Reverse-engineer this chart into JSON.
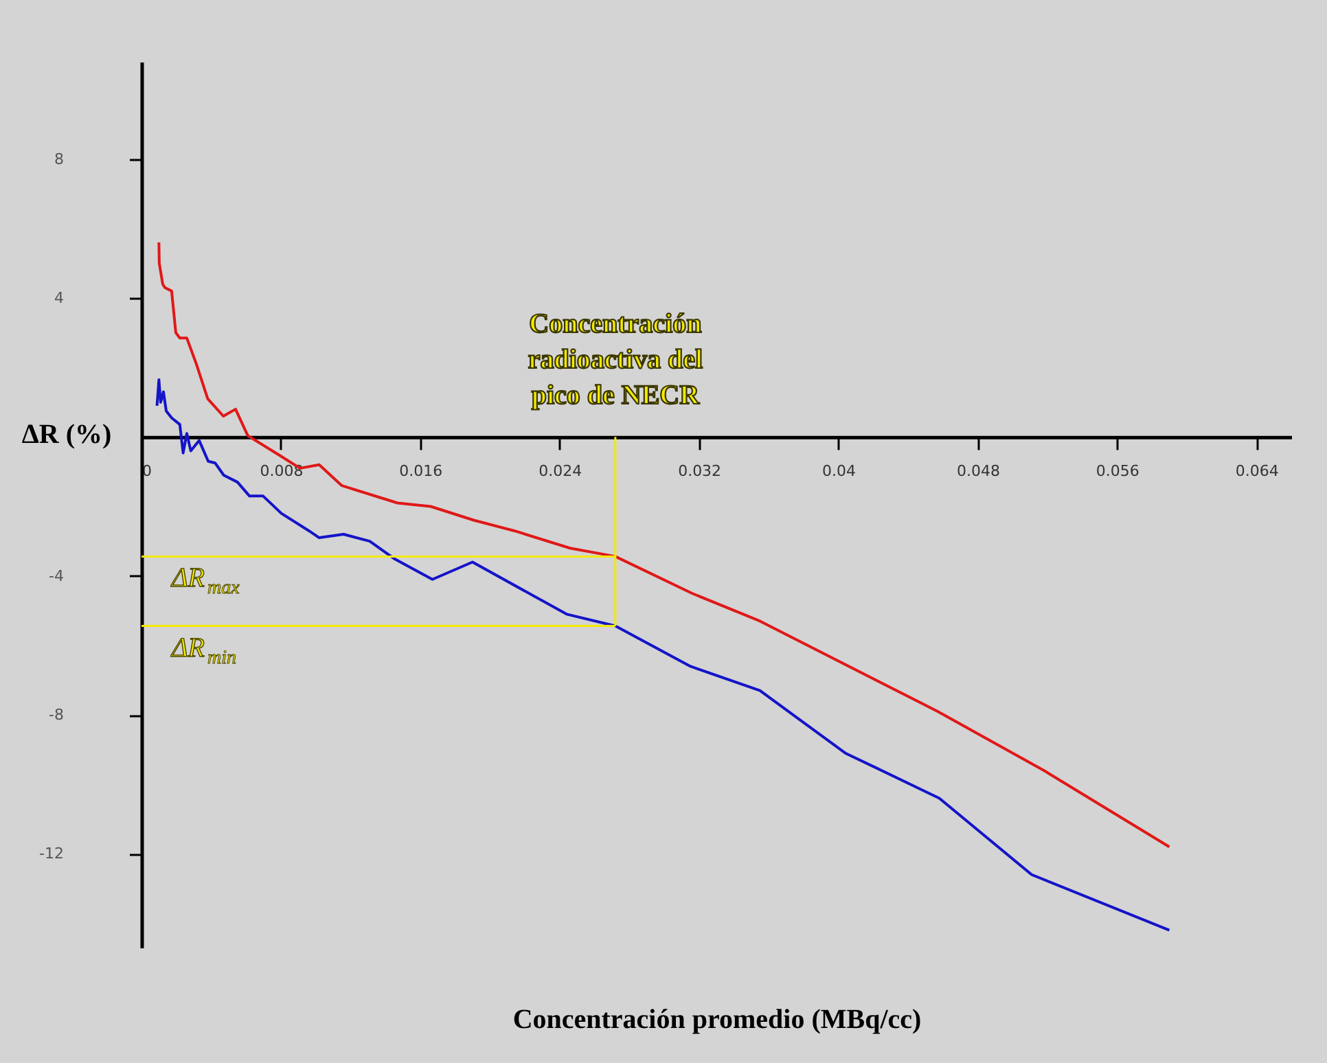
{
  "chart_data": {
    "type": "line",
    "xlabel": "Concentración promedio (MBq/cc)",
    "ylabel": "ΔR (%)",
    "xlim": [
      0,
      0.066
    ],
    "ylim": [
      -14.7,
      10.8
    ],
    "xticks": [
      0,
      0.008,
      0.016,
      0.024,
      0.032,
      0.04,
      0.048,
      0.056,
      0.064
    ],
    "yticks": [
      8,
      4,
      -4,
      -8,
      -12
    ],
    "grid": false,
    "legend": false,
    "series": [
      {
        "color": "#e01818",
        "x": [
          0.001,
          0.00102,
          0.00122,
          0.00134,
          0.00173,
          0.00197,
          0.0022,
          0.0026,
          0.00315,
          0.0038,
          0.0047,
          0.0054,
          0.0061,
          0.008,
          0.0091,
          0.0102,
          0.0115,
          0.0147,
          0.0166,
          0.0191,
          0.0214,
          0.0246,
          0.0272,
          0.0316,
          0.0355,
          0.0457,
          0.0518,
          0.059
        ],
        "values": [
          5.6,
          5.0,
          4.4,
          4.3,
          4.2,
          3.0,
          2.85,
          2.85,
          2.1,
          1.1,
          0.6,
          0.8,
          0.04,
          -0.55,
          -0.9,
          -0.8,
          -1.4,
          -1.9,
          -2.0,
          -2.4,
          -2.7,
          -3.2,
          -3.44,
          -4.5,
          -5.3,
          -7.9,
          -9.6,
          -11.8
        ]
      },
      {
        "color": "#1414c8",
        "x": [
          0.00089,
          0.001,
          0.0011,
          0.00126,
          0.00142,
          0.00173,
          0.0022,
          0.00239,
          0.0026,
          0.00283,
          0.00331,
          0.00383,
          0.00423,
          0.00472,
          0.00551,
          0.0062,
          0.00698,
          0.00803,
          0.00961,
          0.0102,
          0.0116,
          0.0131,
          0.0145,
          0.0167,
          0.019,
          0.0244,
          0.0272,
          0.0315,
          0.0355,
          0.0404,
          0.0458,
          0.0511,
          0.059
        ],
        "values": [
          0.9,
          1.65,
          1.0,
          1.3,
          0.75,
          0.55,
          0.36,
          -0.46,
          0.1,
          -0.4,
          -0.1,
          -0.7,
          -0.75,
          -1.1,
          -1.3,
          -1.7,
          -1.7,
          -2.2,
          -2.7,
          -2.9,
          -2.8,
          -3.0,
          -3.5,
          -4.1,
          -3.6,
          -5.1,
          -5.44,
          -6.6,
          -7.3,
          -9.1,
          -10.4,
          -12.6,
          -14.2
        ]
      }
    ],
    "ref_lines": [
      {
        "axis": "x",
        "value": 0.0272,
        "label": "Concentración radioactiva del pico de NECR",
        "color": "#f2ea00"
      },
      {
        "axis": "y",
        "value": -3.44,
        "label": "ΔR$_{max}$",
        "color": "#f2ea00"
      },
      {
        "axis": "y",
        "value": -5.44,
        "label": "ΔR$_{min}$",
        "color": "#f2ea00"
      }
    ]
  }
}
